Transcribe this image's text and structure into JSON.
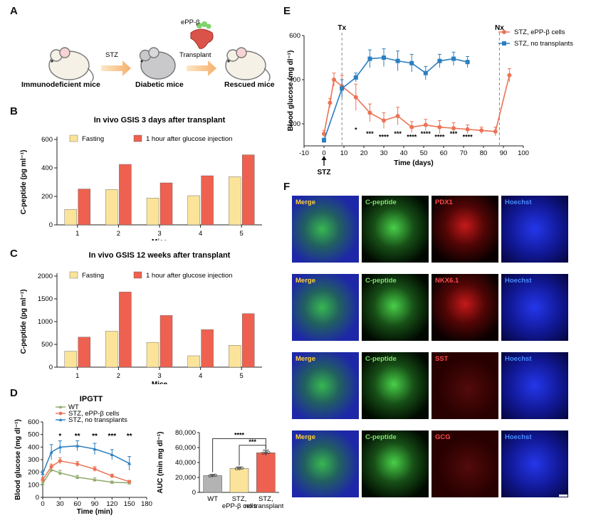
{
  "panels": {
    "A": {
      "label": "A",
      "step_labels": [
        "Immunodeficient mice",
        "Diabetic mice",
        "Rescued mice"
      ],
      "arrow1_text": "STZ",
      "arrow2_top": "ePP-β",
      "arrow2_text": "Transplant"
    },
    "B": {
      "label": "B"
    },
    "C": {
      "label": "C"
    },
    "D": {
      "label": "D"
    },
    "E": {
      "label": "E",
      "tx_label": "Tx",
      "nx_label": "Nx",
      "stz_label": "STZ"
    },
    "F": {
      "label": "F"
    }
  },
  "chart_data": [
    {
      "id": "B",
      "type": "bar",
      "title": "In vivo GSIS 3 days after transplant",
      "xlabel": "Mice",
      "ylabel": "C-peptide (pg ml⁻¹)",
      "categories": [
        "1",
        "2",
        "3",
        "4",
        "5"
      ],
      "ylim": [
        0,
        600
      ],
      "yticks": [
        0,
        200,
        400,
        600
      ],
      "series": [
        {
          "name": "Fasting",
          "color": "#fbe49a",
          "values": [
            108,
            248,
            188,
            205,
            338
          ]
        },
        {
          "name": "1 hour after glucose injection",
          "color": "#ee6150",
          "values": [
            252,
            425,
            295,
            345,
            492
          ]
        }
      ]
    },
    {
      "id": "C",
      "type": "bar",
      "title": "In vivo GSIS 12 weeks after transplant",
      "xlabel": "Mice",
      "ylabel": "C-peptide (pg ml⁻¹)",
      "categories": [
        "1",
        "2",
        "3",
        "4",
        "5"
      ],
      "ylim": [
        0,
        2000
      ],
      "yticks": [
        0,
        500,
        1000,
        1500,
        2000
      ],
      "series": [
        {
          "name": "Fasting",
          "color": "#fbe49a",
          "values": [
            350,
            790,
            545,
            250,
            480
          ]
        },
        {
          "name": "1 hour after glucose injection",
          "color": "#ee6150",
          "values": [
            660,
            1650,
            1135,
            825,
            1175
          ]
        }
      ]
    },
    {
      "id": "D-IPGTT",
      "type": "line",
      "title": "IPGTT",
      "xlabel": "Time (min)",
      "ylabel": "Blood glucose (mg dl⁻¹)",
      "x": [
        0,
        15,
        30,
        60,
        90,
        120,
        150
      ],
      "xlim": [
        0,
        180
      ],
      "xticks": [
        0,
        30,
        60,
        90,
        120,
        150,
        180
      ],
      "ylim": [
        0,
        600
      ],
      "yticks": [
        0,
        100,
        200,
        300,
        400,
        500,
        600
      ],
      "series": [
        {
          "name": "WT",
          "color": "#8fa86a",
          "marker": "triangle",
          "values": [
            110,
            220,
            195,
            160,
            140,
            120,
            115
          ],
          "err": [
            10,
            20,
            20,
            15,
            15,
            10,
            10
          ]
        },
        {
          "name": "STZ, ePP-β cells",
          "color": "#ec7356",
          "marker": "circle",
          "values": [
            140,
            245,
            290,
            265,
            225,
            170,
            125
          ],
          "err": [
            15,
            20,
            25,
            20,
            20,
            15,
            10
          ]
        },
        {
          "name": "STZ, no transplants",
          "color": "#2a7fc0",
          "marker": "triangle",
          "values": [
            190,
            360,
            400,
            410,
            385,
            340,
            270
          ],
          "err": [
            20,
            60,
            50,
            40,
            45,
            40,
            55
          ]
        }
      ],
      "annotations": [
        {
          "x": 30,
          "text": "*"
        },
        {
          "x": 60,
          "text": "**"
        },
        {
          "x": 90,
          "text": "**"
        },
        {
          "x": 120,
          "text": "***"
        },
        {
          "x": 150,
          "text": "**"
        }
      ]
    },
    {
      "id": "D-AUC",
      "type": "bar",
      "ylabel": "AUC (min mg dl⁻¹)",
      "categories": [
        "WT",
        "STZ, ePP-β cells",
        "STZ, no transplants"
      ],
      "ylim": [
        0,
        80000
      ],
      "yticks": [
        "0",
        "20,000",
        "40,000",
        "60,000",
        "80,000"
      ],
      "values": [
        22500,
        32000,
        53000
      ],
      "err": [
        1500,
        2000,
        3500
      ],
      "colors": [
        "#b3b3b3",
        "#fbe49a",
        "#ee6150"
      ],
      "significance": [
        {
          "text": "****"
        },
        {
          "text": "***"
        }
      ]
    },
    {
      "id": "E",
      "type": "line",
      "xlabel": "Time (days)",
      "ylabel": "Blood glucose (mg dl⁻¹)",
      "xlim": [
        -10,
        100
      ],
      "xticks": [
        -10,
        0,
        10,
        20,
        30,
        40,
        50,
        60,
        70,
        80,
        90,
        100
      ],
      "ylim": [
        100,
        600
      ],
      "yticks": [
        200,
        400,
        600
      ],
      "vlines": [
        {
          "x": 9,
          "label": "Tx"
        },
        {
          "x": 88,
          "label": "Nx"
        }
      ],
      "series": [
        {
          "name": "STZ, ePP-β cells",
          "color": "#ec7356",
          "marker": "circle",
          "x": [
            0,
            3,
            5,
            9,
            16,
            23,
            30,
            37,
            44,
            51,
            58,
            65,
            72,
            79,
            86,
            93
          ],
          "values": [
            155,
            295,
            400,
            370,
            320,
            250,
            215,
            235,
            185,
            195,
            185,
            180,
            175,
            170,
            165,
            420
          ],
          "err": [
            15,
            20,
            30,
            50,
            60,
            40,
            35,
            40,
            25,
            25,
            30,
            25,
            20,
            15,
            20,
            30
          ]
        },
        {
          "name": "STZ, no transplants",
          "color": "#2a7fc0",
          "marker": "square",
          "x": [
            0,
            9,
            16,
            23,
            30,
            37,
            44,
            51,
            58,
            65,
            72
          ],
          "values": [
            125,
            360,
            410,
            495,
            500,
            485,
            475,
            430,
            485,
            495,
            480
          ],
          "err": [
            10,
            40,
            20,
            40,
            40,
            45,
            40,
            30,
            30,
            30,
            25
          ]
        }
      ],
      "annotations": [
        {
          "x": 16,
          "text": "*"
        },
        {
          "x": 23,
          "text": "***"
        },
        {
          "x": 30,
          "text": "****"
        },
        {
          "x": 37,
          "text": "***"
        },
        {
          "x": 44,
          "text": "****"
        },
        {
          "x": 51,
          "text": "****"
        },
        {
          "x": 58,
          "text": "****"
        },
        {
          "x": 65,
          "text": "***"
        },
        {
          "x": 72,
          "text": "****"
        }
      ]
    }
  ],
  "panel_F": {
    "rows": [
      {
        "tiles": [
          "Merge",
          "C-peptide",
          "PDX1",
          "Hoechst"
        ],
        "label_colors": [
          "#ffd23c",
          "#7ee36a",
          "#ff4a4a",
          "#4a8bff"
        ]
      },
      {
        "tiles": [
          "Merge",
          "C-peptide",
          "NKX6.1",
          "Hoechst"
        ],
        "label_colors": [
          "#ffd23c",
          "#7ee36a",
          "#ff4a4a",
          "#4a8bff"
        ]
      },
      {
        "tiles": [
          "Merge",
          "C-peptide",
          "SST",
          "Hoechst"
        ],
        "label_colors": [
          "#ffd23c",
          "#7ee36a",
          "#ff4a4a",
          "#4a8bff"
        ]
      },
      {
        "tiles": [
          "Merge",
          "C-peptide",
          "GCG",
          "Hoechst"
        ],
        "label_colors": [
          "#ffd23c",
          "#7ee36a",
          "#ff4a4a",
          "#4a8bff"
        ]
      }
    ]
  }
}
